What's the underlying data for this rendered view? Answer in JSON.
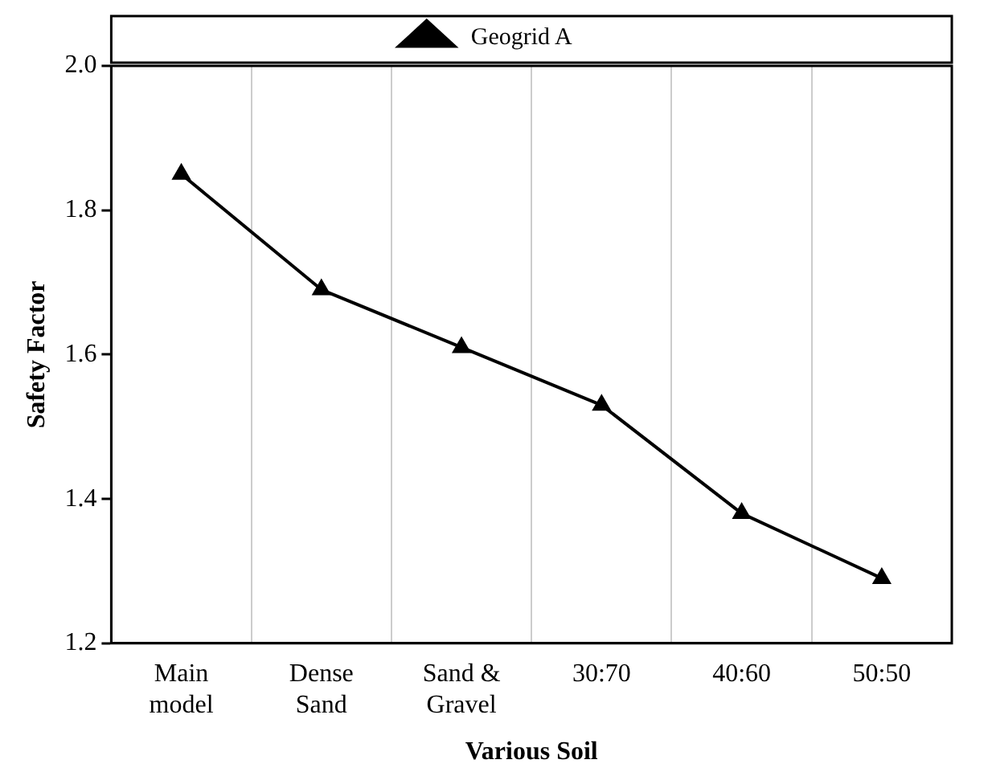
{
  "chart_data": {
    "type": "line",
    "xlabel": "Various Soil",
    "ylabel": "Safety Factor",
    "categories": [
      "Main model",
      "Dense Sand",
      "Sand & Gravel",
      "30:70",
      "40:60",
      "50:50"
    ],
    "series": [
      {
        "name": "Geogrid A",
        "color": "#000000",
        "values": [
          1.85,
          1.69,
          1.61,
          1.53,
          1.38,
          1.29
        ]
      }
    ],
    "ylim": [
      1.2,
      2.0
    ],
    "yticks": [
      1.2,
      1.4,
      1.6,
      1.8,
      {
        "value": 2,
        "label": "2.0"
      }
    ],
    "grid": "x",
    "legend": "top",
    "marker": "triangle",
    "line_style": "solid"
  }
}
